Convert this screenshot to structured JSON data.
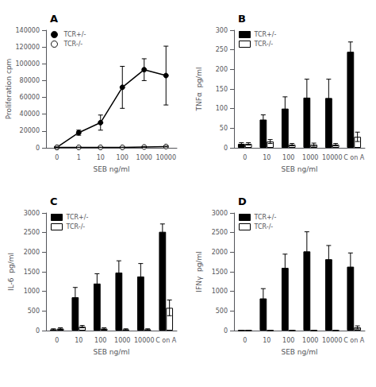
{
  "chart_data": [
    {
      "type": "line",
      "title": "A",
      "x_label": "SEB ng/ml",
      "y_label": "Proliferation cpm",
      "categories": [
        "0",
        "1",
        "10",
        "100",
        "1000",
        "10000"
      ],
      "series": [
        {
          "name": "TCR+/-",
          "color": "#000000",
          "marker": "circle",
          "values": [
            500,
            18000,
            30000,
            72000,
            93000,
            86000
          ],
          "errors": [
            500,
            3000,
            9000,
            25000,
            13000,
            35000
          ]
        },
        {
          "name": "TCR-/-",
          "color": "#000000",
          "marker": "open_circle",
          "values": [
            500,
            500,
            500,
            500,
            1000,
            1500
          ],
          "errors": [
            300,
            300,
            300,
            300,
            500,
            500
          ]
        }
      ],
      "ylim": [
        0,
        140000
      ],
      "yticks": [
        0,
        20000,
        40000,
        60000,
        80000,
        100000,
        120000,
        140000
      ],
      "legend": "upper left",
      "grid": false
    },
    {
      "type": "bar",
      "title": "B",
      "x_label": "SEB ng/ml",
      "y_label": "TNFα  pg/ml",
      "categories": [
        "0",
        "10",
        "100",
        "1000",
        "10000",
        "C on A"
      ],
      "series": [
        {
          "name": "TCR+/-",
          "color": "#000000",
          "values": [
            10,
            72,
            100,
            128,
            127,
            245
          ],
          "errors": [
            3,
            12,
            30,
            47,
            48,
            25
          ]
        },
        {
          "name": "TCR-/-",
          "color": "#ffffff",
          "values": [
            10,
            16,
            8,
            8,
            8,
            28
          ],
          "errors": [
            3,
            5,
            3,
            4,
            3,
            12
          ]
        }
      ],
      "ylim": [
        0,
        300
      ],
      "yticks": [
        0,
        50,
        100,
        150,
        200,
        250,
        300
      ],
      "legend": "upper left",
      "grid": false
    },
    {
      "type": "bar",
      "title": "C",
      "x_label": "SEB ng/ml",
      "y_label": "IL-6  pg/ml",
      "categories": [
        "0",
        "10",
        "100",
        "1000",
        "10000",
        "C on A"
      ],
      "series": [
        {
          "name": "TCR+/-",
          "color": "#000000",
          "values": [
            30,
            850,
            1200,
            1480,
            1380,
            2520
          ],
          "errors": [
            15,
            250,
            250,
            300,
            330,
            200
          ]
        },
        {
          "name": "TCR-/-",
          "color": "#ffffff",
          "values": [
            50,
            100,
            50,
            30,
            30,
            580
          ],
          "errors": [
            20,
            30,
            20,
            15,
            15,
            200
          ]
        }
      ],
      "ylim": [
        0,
        3000
      ],
      "yticks": [
        0,
        500,
        1000,
        1500,
        2000,
        2500,
        3000
      ],
      "legend": "upper left",
      "grid": false
    },
    {
      "type": "bar",
      "title": "D",
      "x_label": "SEB ng/ml",
      "y_label": "IFNγ  pg/ml",
      "categories": [
        "0",
        "10",
        "100",
        "1000",
        "10000",
        "C on A"
      ],
      "series": [
        {
          "name": "TCR+/-",
          "color": "#000000",
          "values": [
            0,
            820,
            1600,
            2020,
            1820,
            1630
          ],
          "errors": [
            0,
            250,
            350,
            500,
            350,
            350
          ]
        },
        {
          "name": "TCR-/-",
          "color": "#ffffff",
          "values": [
            0,
            0,
            0,
            0,
            0,
            80
          ],
          "errors": [
            0,
            0,
            0,
            0,
            0,
            40
          ]
        }
      ],
      "ylim": [
        0,
        3000
      ],
      "yticks": [
        0,
        500,
        1000,
        1500,
        2000,
        2500,
        3000
      ],
      "legend": "upper left",
      "grid": false
    }
  ]
}
